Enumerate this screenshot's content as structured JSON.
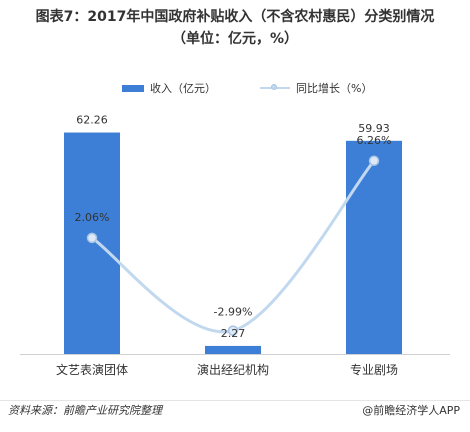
{
  "title_line1": "图表7：2017年中国政府补贴收入（不含农村惠民）分类别情况",
  "title_line2": "（单位：亿元，%）",
  "legend": {
    "bar_label": "收入（亿元）",
    "line_label": "同比增长（%）"
  },
  "colors": {
    "bar": "#3d7fd6",
    "line": "#c2d8ef",
    "marker_fill": "#dde9f6",
    "marker_stroke": "#a7c4e4"
  },
  "chart_data": {
    "type": "bar",
    "categories": [
      "文艺表演团体",
      "演出经纪机构",
      "专业剧场"
    ],
    "series": [
      {
        "name": "收入（亿元）",
        "type": "bar",
        "values": [
          62.26,
          2.27,
          59.93
        ],
        "labels": [
          "62.26",
          "2.27",
          "59.93"
        ]
      },
      {
        "name": "同比增长（%）",
        "type": "line",
        "smooth": true,
        "values": [
          2.06,
          -2.99,
          6.26
        ],
        "labels": [
          "2.06%",
          "-2.99%",
          "6.26%"
        ]
      }
    ],
    "bar_ylim": [
      0,
      70
    ],
    "line_ylim": [
      -3.5,
      7.5
    ],
    "legend_position": "top",
    "grid": false
  },
  "footer": {
    "source": "资料来源：前瞻产业研究院整理",
    "brand": "@前瞻经济学人APP"
  }
}
